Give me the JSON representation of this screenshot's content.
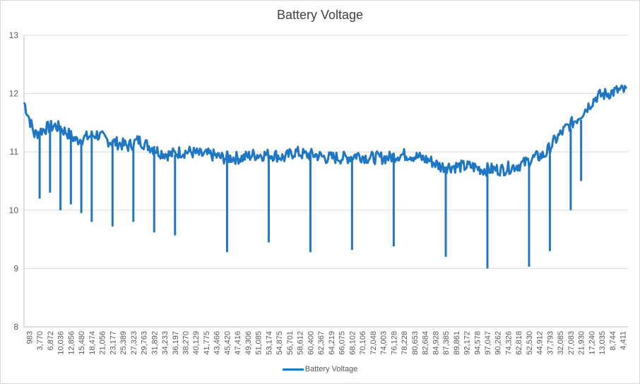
{
  "chart_data": {
    "type": "line",
    "title": "Battery Voltage",
    "xlabel": "",
    "ylabel": "",
    "ylim": [
      8,
      13
    ],
    "y_ticks": [
      8,
      9,
      10,
      11,
      12,
      13
    ],
    "grid": "horizontal",
    "legend_position": "bottom",
    "series_color": "#1f77c4",
    "categories": [
      "983",
      "3,770",
      "6,872",
      "10,036",
      "12,856",
      "15,480",
      "18,474",
      "21,056",
      "23,177",
      "25,389",
      "27,323",
      "29,763",
      "31,892",
      "34,233",
      "36,197",
      "38,270",
      "40,129",
      "41,775",
      "43,466",
      "45,420",
      "47,416",
      "49,306",
      "51,085",
      "53,174",
      "54,875",
      "56,701",
      "58,612",
      "60,400",
      "62,367",
      "64,219",
      "66,075",
      "68,102",
      "70,106",
      "72,048",
      "74,003",
      "76,128",
      "78,228",
      "80,653",
      "82,684",
      "84,928",
      "87,385",
      "89,861",
      "92,172",
      "94,578",
      "97,047",
      "90,262",
      "74,326",
      "62,818",
      "52,530",
      "44,912",
      "37,793",
      "32,085",
      "27,083",
      "21,930",
      "17,240",
      "13,035",
      "8,744",
      "4,411"
    ],
    "series": [
      {
        "name": "Battery Voltage",
        "values": [
          11.85,
          11.3,
          11.4,
          11.45,
          11.35,
          11.2,
          11.25,
          11.3,
          11.2,
          11.15,
          11.1,
          11.2,
          11.1,
          11.0,
          10.95,
          11.0,
          11.0,
          10.95,
          10.95,
          10.9,
          10.9,
          10.9,
          10.95,
          10.95,
          10.95,
          10.9,
          11.0,
          10.95,
          10.95,
          10.9,
          10.9,
          10.9,
          10.95,
          10.9,
          10.9,
          10.9,
          10.95,
          10.95,
          10.9,
          10.85,
          10.75,
          10.75,
          10.75,
          10.75,
          10.7,
          10.7,
          10.7,
          10.75,
          10.8,
          10.9,
          10.95,
          11.2,
          11.4,
          11.55,
          11.75,
          11.95,
          12.0,
          12.05
        ],
        "dips": [
          {
            "x": "3,770",
            "y": 10.2
          },
          {
            "x": "6,872",
            "y": 10.3
          },
          {
            "x": "10,036",
            "y": 10.0
          },
          {
            "x": "12,856",
            "y": 10.1
          },
          {
            "x": "15,480",
            "y": 9.95
          },
          {
            "x": "18,474",
            "y": 9.8
          },
          {
            "x": "23,177",
            "y": 9.72
          },
          {
            "x": "27,323",
            "y": 9.8
          },
          {
            "x": "31,892",
            "y": 9.62
          },
          {
            "x": "36,197",
            "y": 9.57
          },
          {
            "x": "45,420",
            "y": 9.28
          },
          {
            "x": "53,174",
            "y": 9.45
          },
          {
            "x": "60,400",
            "y": 9.28
          },
          {
            "x": "68,102",
            "y": 9.32
          },
          {
            "x": "76,128",
            "y": 9.38
          },
          {
            "x": "87,385",
            "y": 9.2
          },
          {
            "x": "97,047",
            "y": 9.0
          },
          {
            "x": "52,530",
            "y": 9.03
          },
          {
            "x": "37,793",
            "y": 9.3
          },
          {
            "x": "27,083",
            "y": 10.0
          },
          {
            "x": "21,930",
            "y": 10.5
          }
        ]
      }
    ]
  }
}
